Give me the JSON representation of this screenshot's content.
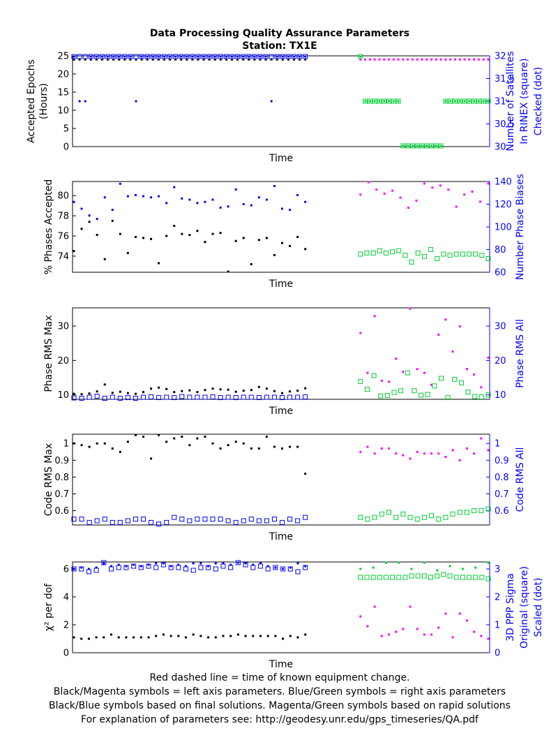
{
  "title": "Data Processing Quality Assurance Parameters",
  "subtitle": "Station: TX1E",
  "colors": {
    "final_left": "#000000",
    "final_right": "#0000ff",
    "rapid_left": "#ff00ff",
    "rapid_right": "#00cc33",
    "right_axis": "#0000ff"
  },
  "footer": [
    "Red dashed line = time of known equipment change.",
    "Black/Magenta symbols = left axis parameters. Blue/Green symbols = right axis parameters",
    "Black/Blue symbols based on final solutions.  Magenta/Green symbols based on rapid solutions",
    "For explanation of parameters see: http://geodesy.unr.edu/gps_timeseries/QA.pdf"
  ],
  "chart_data": [
    {
      "type": "scatter",
      "xlabel": "Time",
      "ylabel": [
        "Accepted Epochs",
        "(Hours)"
      ],
      "y2label": [
        "Number of Satellites",
        "In RINEX (square)",
        "Checked (dot)"
      ],
      "ylim": [
        0,
        25
      ],
      "y2lim": [
        30,
        32
      ],
      "yticks": [
        0,
        5,
        10,
        15,
        20,
        25
      ],
      "y2ticks": [
        30,
        30.5,
        31,
        31.5,
        32
      ],
      "y2ticklabels": [
        "30",
        "30.5",
        "31",
        "31.5",
        "32"
      ],
      "series": [
        {
          "role": "final_left",
          "marker": "dot",
          "values": [
            24,
            24,
            24,
            24,
            24,
            24,
            24,
            24,
            24,
            24,
            24,
            24,
            24,
            24,
            24,
            24,
            24,
            24,
            24,
            24,
            24,
            24,
            24,
            24,
            24,
            24,
            24,
            24,
            24,
            24,
            24,
            24,
            24,
            24,
            24,
            24,
            24,
            24,
            24,
            24,
            24,
            24
          ]
        },
        {
          "role": "final_right",
          "marker": "square",
          "values": [
            32,
            32,
            32,
            32,
            32,
            32,
            32,
            32,
            32,
            32,
            32,
            32,
            32,
            32,
            32,
            32,
            32,
            32,
            32,
            32,
            32,
            32,
            32,
            32,
            32,
            32,
            32,
            32,
            32,
            32,
            32,
            32,
            32,
            32,
            32,
            32,
            32,
            32,
            32,
            32,
            32,
            32
          ]
        },
        {
          "role": "final_right",
          "marker": "dot",
          "values": [
            32,
            31,
            31,
            32,
            32,
            32,
            32,
            32,
            32,
            32,
            32,
            31,
            32,
            32,
            32,
            32,
            32,
            32,
            32,
            32,
            32,
            32,
            32,
            32,
            32,
            32,
            32,
            32,
            32,
            32,
            32,
            32,
            32,
            32,
            32,
            31,
            32,
            32,
            32,
            32,
            32,
            32
          ]
        },
        {
          "role": "rapid_left",
          "marker": "dot",
          "values": [
            24,
            24,
            24,
            24,
            24,
            24,
            24,
            24,
            24,
            24,
            24,
            24,
            24,
            24,
            24,
            24,
            24,
            24,
            24,
            24,
            24,
            24,
            24,
            24,
            24,
            24,
            24,
            24
          ]
        },
        {
          "role": "rapid_right",
          "marker": "square",
          "values": [
            32,
            31,
            31,
            31,
            31,
            31,
            31,
            31,
            31,
            30,
            30,
            30,
            30,
            30,
            30,
            30,
            30,
            30,
            31,
            31,
            31,
            31,
            31,
            31,
            31,
            31,
            31,
            31
          ]
        },
        {
          "role": "rapid_right",
          "marker": "dot",
          "values": [
            32,
            31,
            31,
            31,
            31,
            31,
            31,
            31,
            31,
            30,
            30,
            30,
            30,
            30,
            30,
            30,
            30,
            30,
            31,
            31,
            31,
            31,
            31,
            31,
            31,
            31,
            31,
            31
          ]
        }
      ]
    },
    {
      "type": "scatter",
      "xlabel": "Time",
      "ylabel": [
        "% Phases Accepted"
      ],
      "y2label": [
        "Number Phase Biases"
      ],
      "ylim": [
        72.4,
        81.4
      ],
      "y2lim": [
        60,
        140
      ],
      "yticks": [
        74,
        76,
        78,
        80
      ],
      "y2ticks": [
        60,
        80,
        100,
        120,
        140
      ],
      "series": [
        {
          "role": "final_left",
          "marker": "dot",
          "values": [
            74.5,
            76.7,
            77.4,
            76.1,
            73.7,
            77.5,
            76.2,
            74.3,
            75.9,
            75.8,
            75.7,
            73.3,
            76.0,
            77.0,
            76.2,
            76.1,
            76.5,
            75.4,
            76.2,
            76.3,
            72.4,
            75.5,
            75.8,
            73.2,
            75.6,
            75.8,
            74.1,
            75.3,
            75.0,
            75.9,
            74.7
          ]
        },
        {
          "role": "final_right",
          "marker": "dot",
          "values": [
            122,
            116,
            110,
            107,
            126,
            115,
            138,
            127,
            128,
            127,
            126,
            127,
            121,
            135,
            125,
            124,
            121,
            122,
            124,
            117,
            118,
            133,
            120,
            119,
            126,
            124,
            136,
            116,
            115,
            128,
            122
          ]
        },
        {
          "role": "rapid_left",
          "marker": "dot",
          "values": [
            80.1,
            81.6,
            80.6,
            80.2,
            80.5,
            79.8,
            78.8,
            79.5,
            81.2,
            80.8,
            81.0,
            80.6,
            78.9,
            80.1,
            80.4,
            79.4,
            81.2
          ]
        },
        {
          "role": "rapid_right",
          "marker": "square",
          "values": [
            76,
            77,
            77,
            79,
            77,
            78,
            79,
            75,
            69,
            77,
            74,
            80,
            72,
            76,
            75,
            76,
            76,
            76,
            76,
            75,
            72
          ]
        }
      ]
    },
    {
      "type": "scatter",
      "xlabel": "Time",
      "ylabel": [
        "Phase RMS Max"
      ],
      "y2label": [
        "Phase RMS All"
      ],
      "ylim": [
        8.7,
        35.3
      ],
      "y2lim": [
        8.7,
        35.3
      ],
      "yticks": [
        10,
        20,
        30
      ],
      "y2ticks": [
        10,
        20,
        30
      ],
      "series": [
        {
          "role": "final_left",
          "marker": "dot",
          "values": [
            10.3,
            10.2,
            10.4,
            11.0,
            13.0,
            10.6,
            10.9,
            10.5,
            10.3,
            10.8,
            11.8,
            12.1,
            11.7,
            10.8,
            11.1,
            11.3,
            10.8,
            11.4,
            11.8,
            11.6,
            11.5,
            10.9,
            11.2,
            11.4,
            12.3,
            11.8,
            11.1,
            10.5,
            11.0,
            11.2,
            11.9
          ]
        },
        {
          "role": "final_right",
          "marker": "square",
          "values": [
            9.1,
            9.0,
            9.3,
            9.6,
            9.0,
            9.3,
            9.0,
            9.2,
            9.0,
            9.3,
            9.4,
            9.2,
            9.3,
            9.2,
            9.5,
            9.3,
            9.3,
            9.3,
            9.4,
            9.2,
            9.3,
            9.2,
            9.3,
            9.3,
            9.2,
            9.3,
            9.3,
            9.2,
            9.3,
            9.3,
            9.4
          ]
        },
        {
          "role": "rapid_left",
          "marker": "dot",
          "values": [
            28.0,
            16.4,
            32.9,
            14.1,
            13.8,
            20.5,
            16.7,
            35.3,
            17.5,
            16.4,
            12.9,
            27.5,
            31.9,
            22.6,
            29.9,
            17.5,
            15.9,
            12.2,
            20.8
          ]
        },
        {
          "role": "rapid_right",
          "marker": "square",
          "values": [
            13.9,
            11.6,
            15.6,
            9.7,
            9.8,
            10.7,
            11.2,
            16.4,
            11.2,
            9.9,
            10.1,
            12.6,
            14.8,
            9.2,
            14.5,
            13.5,
            10.8,
            9.5,
            9.4,
            10.0
          ]
        }
      ]
    },
    {
      "type": "scatter",
      "xlabel": "Time",
      "ylabel": [
        "Code RMS Max"
      ],
      "y2label": [
        "Code RMS All"
      ],
      "ylim": [
        0.515,
        1.055
      ],
      "y2lim": [
        0.515,
        1.055
      ],
      "yticks": [
        0.6,
        0.7,
        0.8,
        0.9,
        1
      ],
      "y2ticks": [
        0.6,
        0.7,
        0.8,
        0.9,
        1
      ],
      "y2ticklabels": [
        "0.6",
        "0.7",
        "0.8",
        "0.9",
        "1"
      ],
      "series": [
        {
          "role": "final_left",
          "marker": "dot",
          "values": [
            1.0,
            0.99,
            0.98,
            1.0,
            1.0,
            0.97,
            0.95,
            1.01,
            1.05,
            1.04,
            0.91,
            1.05,
            1.01,
            1.03,
            1.04,
            0.99,
            1.03,
            1.04,
            1.0,
            0.97,
            0.99,
            1.01,
            1.0,
            0.97,
            0.97,
            1.04,
            0.98,
            0.97,
            0.98,
            0.98,
            0.82
          ]
        },
        {
          "role": "final_right",
          "marker": "square",
          "values": [
            0.55,
            0.55,
            0.53,
            0.54,
            0.55,
            0.53,
            0.53,
            0.54,
            0.55,
            0.55,
            0.53,
            0.52,
            0.53,
            0.56,
            0.55,
            0.54,
            0.55,
            0.55,
            0.55,
            0.55,
            0.54,
            0.53,
            0.54,
            0.55,
            0.54,
            0.54,
            0.55,
            0.53,
            0.55,
            0.54,
            0.56
          ]
        },
        {
          "role": "rapid_left",
          "marker": "dot",
          "values": [
            0.95,
            0.98,
            0.94,
            0.97,
            0.97,
            0.94,
            0.93,
            0.91,
            0.95,
            0.94,
            0.94,
            0.94,
            0.92,
            0.96,
            0.9,
            0.97,
            0.94,
            1.03,
            0.96
          ]
        },
        {
          "role": "rapid_right",
          "marker": "square",
          "values": [
            0.56,
            0.55,
            0.56,
            0.58,
            0.59,
            0.56,
            0.58,
            0.56,
            0.55,
            0.56,
            0.57,
            0.55,
            0.56,
            0.58,
            0.59,
            0.59,
            0.6,
            0.6,
            0.61
          ]
        }
      ]
    },
    {
      "type": "scatter",
      "xlabel": "Time",
      "ylabel": [
        "χ² per dof"
      ],
      "y2label": [
        "3D PPP Sigma",
        "Original (square)",
        "Scaled (dot)"
      ],
      "ylim": [
        0,
        6.5
      ],
      "y2lim": [
        0,
        3.25
      ],
      "yticks": [
        0,
        2,
        4,
        6
      ],
      "y2ticks": [
        0,
        1,
        2,
        3
      ],
      "series": [
        {
          "role": "final_left",
          "marker": "dot",
          "values": [
            1.1,
            1.0,
            1.0,
            1.1,
            1.1,
            1.3,
            1.1,
            1.1,
            1.1,
            1.1,
            1.1,
            1.2,
            1.3,
            1.2,
            1.2,
            1.1,
            1.3,
            1.2,
            1.1,
            1.1,
            1.2,
            1.2,
            1.3,
            1.2,
            1.2,
            1.2,
            1.2,
            1.2,
            1.0,
            1.2,
            1.1,
            1.3
          ]
        },
        {
          "role": "final_right",
          "marker": "square",
          "values": [
            3.0,
            3.0,
            2.9,
            2.95,
            3.25,
            3.0,
            3.05,
            3.05,
            3.1,
            3.05,
            3.1,
            3.05,
            3.15,
            3.05,
            3.05,
            3.0,
            2.95,
            3.05,
            3.05,
            3.0,
            3.1,
            3.05,
            3.25,
            3.15,
            3.05,
            3.1,
            3.0,
            3.05,
            3.0,
            3.0,
            2.9,
            3.05
          ]
        },
        {
          "role": "final_right",
          "marker": "dot",
          "values": [
            3.0,
            3.05,
            3.0,
            3.05,
            3.2,
            3.1,
            3.15,
            3.1,
            3.15,
            3.1,
            3.15,
            3.2,
            3.2,
            3.1,
            3.15,
            3.1,
            3.2,
            3.2,
            3.1,
            3.2,
            3.2,
            3.15,
            3.25,
            3.2,
            3.15,
            3.2,
            3.1,
            3.05,
            3.0,
            3.05,
            3.2,
            3.1
          ]
        },
        {
          "role": "rapid_left",
          "marker": "dot",
          "values": [
            2.6,
            1.9,
            3.3,
            1.2,
            1.3,
            1.5,
            1.7,
            3.3,
            1.7,
            1.3,
            1.3,
            1.8,
            2.8,
            1.1,
            2.8,
            2.3,
            1.5,
            1.2,
            1.0
          ]
        },
        {
          "role": "rapid_right",
          "marker": "square",
          "values": [
            2.7,
            2.7,
            2.7,
            2.7,
            2.7,
            2.7,
            2.7,
            2.7,
            2.75,
            2.75,
            2.75,
            2.7,
            2.75,
            2.8,
            2.75,
            2.7,
            2.7,
            2.7,
            2.7,
            2.7,
            2.65
          ]
        },
        {
          "role": "rapid_right",
          "marker": "dot",
          "values": [
            3.0,
            3.05,
            3.3,
            3.3,
            3.0,
            3.3,
            2.95,
            3.1,
            3.0,
            3.05,
            3.25
          ]
        }
      ]
    }
  ]
}
